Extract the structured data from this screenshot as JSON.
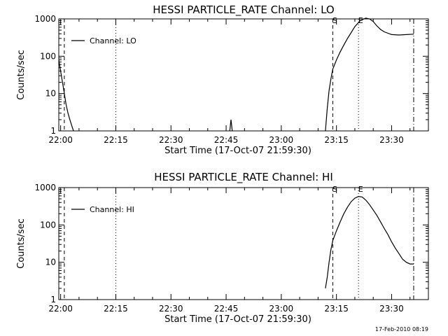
{
  "figure_date": "17-Feb-2010 08:19",
  "colors": {
    "background": "#ffffff",
    "foreground": "#000000"
  },
  "chart_data": [
    {
      "type": "line",
      "title": "HESSI PARTICLE_RATE Channel: LO",
      "xlabel": "Start Time (17-Oct-07 21:59:30)",
      "ylabel": "Counts/sec",
      "y_scale": "log",
      "xlim": [
        "21:59:30",
        "23:40:00"
      ],
      "ylim": [
        1,
        1000
      ],
      "x_ticks": [
        "22:00",
        "22:15",
        "22:30",
        "22:45",
        "23:00",
        "23:15",
        "23:30"
      ],
      "y_ticks": [
        "1",
        "10",
        "100",
        "1000"
      ],
      "grid": false,
      "legend_position": "top-left",
      "series": [
        {
          "name": "Channel: LO",
          "segments": [
            {
              "x": [
                "21:59:30",
                "22:00:00",
                "22:00:30",
                "22:01:00",
                "22:01:30",
                "22:02:00",
                "22:02:30",
                "22:03:00",
                "22:03:30"
              ],
              "y": [
                80,
                40,
                20,
                10,
                5,
                3,
                2,
                1.4,
                1
              ]
            },
            {
              "x": [
                "22:46:00",
                "22:46:20",
                "22:46:40"
              ],
              "y": [
                1,
                2,
                1
              ]
            },
            {
              "x": [
                "23:12:00",
                "23:12:30",
                "23:13:00",
                "23:13:30",
                "23:14:00",
                "23:15:00",
                "23:16:00",
                "23:17:00",
                "23:18:00",
                "23:19:00",
                "23:20:00",
                "23:21:00",
                "23:21:30",
                "23:22:00",
                "23:23:00",
                "23:24:00",
                "23:25:00",
                "23:26:00",
                "23:27:00",
                "23:28:00",
                "23:30:00",
                "23:32:00",
                "23:34:00",
                "23:36:00"
              ],
              "y": [
                1,
                4,
                12,
                25,
                45,
                80,
                130,
                200,
                300,
                430,
                620,
                800,
                900,
                950,
                1050,
                1000,
                850,
                650,
                520,
                450,
                380,
                370,
                380,
                390
              ]
            }
          ]
        }
      ],
      "markers": [
        {
          "label": "",
          "time": "22:01:00",
          "style": "dash"
        },
        {
          "label": "",
          "time": "22:15:00",
          "style": "dot"
        },
        {
          "label": "S",
          "time": "23:14:00",
          "style": "dash"
        },
        {
          "label": "E",
          "time": "23:21:00",
          "style": "dot"
        },
        {
          "label": "",
          "time": "23:36:00",
          "style": "dashdot"
        }
      ]
    },
    {
      "type": "line",
      "title": "HESSI PARTICLE_RATE Channel: HI",
      "xlabel": "Start Time (17-Oct-07 21:59:30)",
      "ylabel": "Counts/sec",
      "y_scale": "log",
      "xlim": [
        "21:59:30",
        "23:40:00"
      ],
      "ylim": [
        1,
        1000
      ],
      "x_ticks": [
        "22:00",
        "22:15",
        "22:30",
        "22:45",
        "23:00",
        "23:15",
        "23:30"
      ],
      "y_ticks": [
        "1",
        "10",
        "100",
        "1000"
      ],
      "grid": false,
      "legend_position": "top-left",
      "series": [
        {
          "name": "Channel: HI",
          "segments": [
            {
              "x": [
                "23:12:00",
                "23:12:30",
                "23:13:00",
                "23:13:30",
                "23:14:00",
                "23:15:00",
                "23:16:00",
                "23:17:00",
                "23:18:00",
                "23:19:00",
                "23:20:00",
                "23:21:00",
                "23:22:00",
                "23:23:00",
                "23:24:00",
                "23:25:00",
                "23:26:00",
                "23:27:00",
                "23:28:00",
                "23:29:00",
                "23:30:00",
                "23:31:00",
                "23:32:00",
                "23:33:00",
                "23:34:00",
                "23:35:00",
                "23:36:00"
              ],
              "y": [
                2,
                4,
                10,
                22,
                38,
                70,
                120,
                200,
                300,
                420,
                520,
                580,
                560,
                460,
                350,
                250,
                180,
                120,
                80,
                55,
                35,
                24,
                17,
                12,
                10,
                9,
                9
              ]
            }
          ]
        }
      ],
      "markers": [
        {
          "label": "",
          "time": "22:01:00",
          "style": "dash"
        },
        {
          "label": "",
          "time": "22:15:00",
          "style": "dot"
        },
        {
          "label": "S",
          "time": "23:14:00",
          "style": "dash"
        },
        {
          "label": "E",
          "time": "23:21:00",
          "style": "dot"
        },
        {
          "label": "",
          "time": "23:36:00",
          "style": "dashdot"
        }
      ]
    }
  ]
}
